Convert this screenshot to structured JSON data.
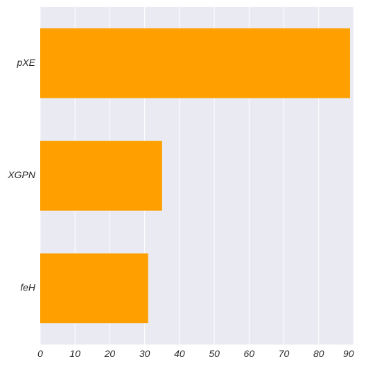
{
  "chart_data": {
    "type": "bar",
    "orientation": "horizontal",
    "categories": [
      "pXE",
      "XGPN",
      "feH"
    ],
    "values": [
      89,
      35,
      31
    ],
    "xlim": [
      0,
      90
    ],
    "x_ticks": [
      0,
      10,
      20,
      30,
      40,
      50,
      60,
      70,
      80,
      90
    ],
    "title": "",
    "xlabel": "",
    "ylabel": "",
    "grid": true,
    "bar_color": "#ffa000",
    "background_color": "#eaeaf2",
    "gridline_color": "#ffffff"
  }
}
